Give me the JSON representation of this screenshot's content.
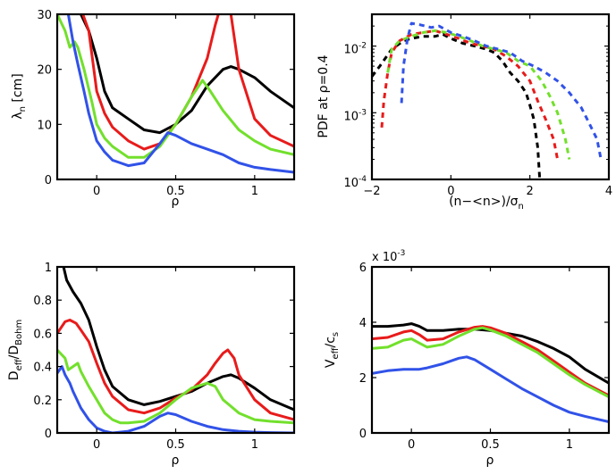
{
  "colors": {
    "blue": "#3152e8",
    "green": "#72e02c",
    "red": "#e81b1b",
    "black": "#000000"
  },
  "chart_data": [
    {
      "id": "p1",
      "type": "line",
      "xlabel": "ρ",
      "ylabel_main": "λ",
      "ylabel_sub": "n",
      "ylabel_unit": " [cm]",
      "xlim": [
        -0.25,
        1.25
      ],
      "ylim": [
        0,
        30
      ],
      "xticks": [
        0,
        0.5,
        1
      ],
      "xticklabels": [
        "0",
        "0.5",
        "1"
      ],
      "yticks": [
        0,
        10,
        20,
        30
      ],
      "yticklabels": [
        "0",
        "10",
        "20",
        "30"
      ],
      "series": [
        {
          "name": "black",
          "color": "black",
          "x": [
            -0.2,
            -0.15,
            -0.1,
            -0.05,
            0.0,
            0.05,
            0.1,
            0.2,
            0.3,
            0.4,
            0.5,
            0.6,
            0.7,
            0.8,
            0.85,
            0.9,
            1.0,
            1.1,
            1.25
          ],
          "y": [
            36,
            33,
            30,
            27,
            22,
            16,
            13,
            11,
            9,
            8.5,
            10,
            12.5,
            17,
            20,
            20.5,
            20,
            18.5,
            16,
            13
          ]
        },
        {
          "name": "red",
          "color": "red",
          "x": [
            -0.2,
            -0.15,
            -0.1,
            -0.05,
            0.0,
            0.05,
            0.1,
            0.2,
            0.3,
            0.4,
            0.5,
            0.6,
            0.7,
            0.75,
            0.8,
            0.85,
            0.9,
            1.0,
            1.1,
            1.25
          ],
          "y": [
            34,
            33,
            31,
            27,
            16,
            12,
            9.5,
            7,
            5.5,
            6.5,
            10,
            15,
            22,
            28,
            33,
            30,
            20,
            11,
            8,
            6
          ]
        },
        {
          "name": "green",
          "color": "green",
          "x": [
            -0.25,
            -0.2,
            -0.17,
            -0.14,
            -0.12,
            -0.08,
            -0.03,
            0.0,
            0.05,
            0.1,
            0.2,
            0.3,
            0.4,
            0.5,
            0.6,
            0.67,
            0.72,
            0.8,
            0.9,
            1.0,
            1.1,
            1.25
          ],
          "y": [
            30,
            27,
            24,
            25,
            24,
            20,
            14,
            10,
            7.5,
            6,
            4,
            4,
            6,
            10,
            15,
            18,
            16,
            12.5,
            9,
            7,
            5.5,
            4.5
          ]
        },
        {
          "name": "blue",
          "color": "blue",
          "x": [
            -0.18,
            -0.15,
            -0.12,
            -0.08,
            -0.05,
            0.0,
            0.05,
            0.1,
            0.15,
            0.2,
            0.3,
            0.4,
            0.45,
            0.5,
            0.6,
            0.7,
            0.8,
            0.9,
            1.0,
            1.1,
            1.25
          ],
          "y": [
            30,
            25,
            21,
            16,
            12,
            7,
            5,
            3.5,
            3,
            2.5,
            3,
            6.5,
            8.5,
            8,
            6.5,
            5.5,
            4.5,
            3,
            2.2,
            1.8,
            1.3
          ]
        }
      ]
    },
    {
      "id": "p2",
      "type": "line",
      "yscale": "log",
      "xlabel_main": "(n−<n>)/σ",
      "xlabel_sub": "n",
      "ylabel": "PDF at ρ=0.4",
      "xlim": [
        -2,
        4
      ],
      "ylim": [
        0.0001,
        0.03
      ],
      "xticks": [
        -2,
        0,
        2,
        4
      ],
      "xticklabels": [
        "−2",
        "0",
        "2",
        "4"
      ],
      "yticks": [
        0.0001,
        0.001,
        0.01
      ],
      "ytick_exponents": [
        "-4",
        "-3",
        "-2"
      ],
      "ytick_base": "10",
      "series": [
        {
          "name": "black",
          "color": "black",
          "x": [
            -2.0,
            -1.8,
            -1.5,
            -1.2,
            -1.0,
            -0.7,
            -0.4,
            -0.2,
            0.0,
            0.3,
            0.6,
            0.9,
            1.1,
            1.3,
            1.5,
            1.7,
            1.9,
            2.0,
            2.1,
            2.2,
            2.25
          ],
          "y": [
            0.0035,
            0.005,
            0.009,
            0.012,
            0.013,
            0.014,
            0.014,
            0.015,
            0.013,
            0.011,
            0.01,
            0.009,
            0.008,
            0.006,
            0.004,
            0.003,
            0.002,
            0.0013,
            0.0008,
            0.0003,
            0.0001
          ]
        },
        {
          "name": "red",
          "color": "red",
          "x": [
            -1.75,
            -1.7,
            -1.6,
            -1.5,
            -1.3,
            -1.0,
            -0.7,
            -0.4,
            -0.1,
            0.2,
            0.5,
            0.8,
            1.1,
            1.4,
            1.7,
            2.0,
            2.2,
            2.4,
            2.6,
            2.7
          ],
          "y": [
            0.0006,
            0.0015,
            0.004,
            0.008,
            0.012,
            0.015,
            0.016,
            0.017,
            0.015,
            0.013,
            0.011,
            0.01,
            0.009,
            0.007,
            0.005,
            0.003,
            0.0015,
            0.0008,
            0.0004,
            0.0002
          ]
        },
        {
          "name": "green",
          "color": "green",
          "x": [
            -1.6,
            -1.5,
            -1.3,
            -1.0,
            -0.7,
            -0.4,
            -0.1,
            0.2,
            0.5,
            0.8,
            1.1,
            1.4,
            1.7,
            2.0,
            2.3,
            2.5,
            2.7,
            2.9,
            3.0
          ],
          "y": [
            0.004,
            0.009,
            0.012,
            0.014,
            0.016,
            0.017,
            0.016,
            0.014,
            0.012,
            0.01,
            0.009,
            0.008,
            0.006,
            0.005,
            0.003,
            0.0018,
            0.001,
            0.0004,
            0.0002
          ]
        },
        {
          "name": "blue",
          "color": "blue",
          "x": [
            -1.25,
            -1.2,
            -1.1,
            -1.0,
            -0.8,
            -0.5,
            -0.3,
            0.0,
            0.3,
            0.6,
            0.9,
            1.2,
            1.5,
            1.8,
            2.1,
            2.4,
            2.7,
            3.0,
            3.3,
            3.5,
            3.7,
            3.8
          ],
          "y": [
            0.0014,
            0.005,
            0.013,
            0.022,
            0.021,
            0.019,
            0.02,
            0.016,
            0.014,
            0.012,
            0.01,
            0.009,
            0.008,
            0.006,
            0.005,
            0.004,
            0.003,
            0.002,
            0.0012,
            0.0007,
            0.0004,
            0.0002
          ]
        }
      ]
    },
    {
      "id": "p3",
      "type": "line",
      "xlabel": "ρ",
      "ylabel_main": "D",
      "ylabel_sub1": "eff",
      "ylabel_mid": "/D",
      "ylabel_sub2": "Bohm",
      "xlim": [
        -0.25,
        1.25
      ],
      "ylim": [
        0,
        1
      ],
      "xticks": [
        0,
        0.5,
        1
      ],
      "xticklabels": [
        "0",
        "0.5",
        "1"
      ],
      "yticks": [
        0,
        0.2,
        0.4,
        0.6,
        0.8,
        1
      ],
      "yticklabels": [
        "0",
        "0.2",
        "0.4",
        "0.6",
        "0.8",
        "1"
      ],
      "series": [
        {
          "name": "black",
          "color": "black",
          "x": [
            -0.21,
            -0.19,
            -0.15,
            -0.1,
            -0.05,
            0.0,
            0.05,
            0.1,
            0.2,
            0.3,
            0.4,
            0.5,
            0.6,
            0.7,
            0.8,
            0.85,
            0.9,
            1.0,
            1.1,
            1.25
          ],
          "y": [
            1.0,
            0.92,
            0.85,
            0.78,
            0.68,
            0.52,
            0.38,
            0.28,
            0.2,
            0.17,
            0.19,
            0.22,
            0.25,
            0.3,
            0.34,
            0.35,
            0.33,
            0.27,
            0.2,
            0.14
          ]
        },
        {
          "name": "red",
          "color": "red",
          "x": [
            -0.25,
            -0.2,
            -0.17,
            -0.13,
            -0.1,
            -0.05,
            0.0,
            0.05,
            0.1,
            0.2,
            0.3,
            0.4,
            0.5,
            0.6,
            0.7,
            0.75,
            0.8,
            0.83,
            0.87,
            0.9,
            1.0,
            1.1,
            1.25
          ],
          "y": [
            0.6,
            0.67,
            0.68,
            0.66,
            0.62,
            0.55,
            0.42,
            0.3,
            0.22,
            0.14,
            0.12,
            0.15,
            0.21,
            0.26,
            0.35,
            0.42,
            0.48,
            0.5,
            0.45,
            0.35,
            0.2,
            0.12,
            0.08
          ]
        },
        {
          "name": "green",
          "color": "green",
          "x": [
            -0.25,
            -0.2,
            -0.18,
            -0.15,
            -0.12,
            -0.1,
            -0.05,
            0.0,
            0.05,
            0.1,
            0.15,
            0.2,
            0.3,
            0.4,
            0.5,
            0.6,
            0.7,
            0.75,
            0.8,
            0.9,
            1.0,
            1.1,
            1.25
          ],
          "y": [
            0.5,
            0.45,
            0.38,
            0.4,
            0.42,
            0.37,
            0.28,
            0.2,
            0.12,
            0.08,
            0.06,
            0.06,
            0.07,
            0.12,
            0.2,
            0.27,
            0.3,
            0.28,
            0.2,
            0.12,
            0.08,
            0.07,
            0.06
          ]
        },
        {
          "name": "blue",
          "color": "blue",
          "x": [
            -0.25,
            -0.22,
            -0.2,
            -0.17,
            -0.15,
            -0.1,
            -0.05,
            0.0,
            0.05,
            0.1,
            0.2,
            0.3,
            0.4,
            0.45,
            0.5,
            0.6,
            0.7,
            0.8,
            0.9,
            1.0,
            1.1,
            1.25
          ],
          "y": [
            0.36,
            0.4,
            0.35,
            0.3,
            0.25,
            0.15,
            0.08,
            0.03,
            0.01,
            0.0,
            0.01,
            0.04,
            0.1,
            0.12,
            0.11,
            0.07,
            0.04,
            0.02,
            0.01,
            0.005,
            0.002,
            0.0
          ]
        }
      ]
    },
    {
      "id": "p4",
      "type": "line",
      "xlabel": "ρ",
      "ylabel_main": "V",
      "ylabel_sub1": "eff",
      "ylabel_mid": "/c",
      "ylabel_sub2": "s",
      "multiplier_base": "x 10",
      "multiplier_exp": "-3",
      "xlim": [
        -0.25,
        1.25
      ],
      "ylim": [
        0,
        6
      ],
      "xticks": [
        0,
        0.5,
        1
      ],
      "xticklabels": [
        "0",
        "0.5",
        "1"
      ],
      "yticks": [
        0,
        2,
        4,
        6
      ],
      "yticklabels": [
        "0",
        "2",
        "4",
        "6"
      ],
      "series": [
        {
          "name": "black",
          "color": "black",
          "x": [
            -0.25,
            -0.15,
            -0.05,
            0.0,
            0.05,
            0.1,
            0.2,
            0.3,
            0.4,
            0.5,
            0.6,
            0.7,
            0.8,
            0.9,
            1.0,
            1.1,
            1.25
          ],
          "y": [
            3.85,
            3.85,
            3.9,
            3.95,
            3.85,
            3.7,
            3.7,
            3.75,
            3.75,
            3.7,
            3.6,
            3.5,
            3.3,
            3.05,
            2.75,
            2.3,
            1.8
          ]
        },
        {
          "name": "red",
          "color": "red",
          "x": [
            -0.25,
            -0.15,
            -0.05,
            0.0,
            0.05,
            0.1,
            0.2,
            0.3,
            0.4,
            0.45,
            0.5,
            0.6,
            0.7,
            0.8,
            0.9,
            1.0,
            1.1,
            1.25
          ],
          "y": [
            3.4,
            3.45,
            3.65,
            3.7,
            3.55,
            3.35,
            3.4,
            3.65,
            3.82,
            3.85,
            3.8,
            3.6,
            3.3,
            3.0,
            2.6,
            2.2,
            1.8,
            1.35
          ]
        },
        {
          "name": "green",
          "color": "green",
          "x": [
            -0.25,
            -0.15,
            -0.05,
            0.0,
            0.05,
            0.1,
            0.2,
            0.3,
            0.4,
            0.45,
            0.5,
            0.6,
            0.7,
            0.8,
            0.9,
            1.0,
            1.1,
            1.25
          ],
          "y": [
            3.05,
            3.1,
            3.35,
            3.4,
            3.25,
            3.1,
            3.2,
            3.5,
            3.75,
            3.8,
            3.72,
            3.5,
            3.2,
            2.9,
            2.5,
            2.1,
            1.75,
            1.3
          ]
        },
        {
          "name": "blue",
          "color": "blue",
          "x": [
            -0.25,
            -0.15,
            -0.05,
            0.0,
            0.05,
            0.1,
            0.2,
            0.3,
            0.35,
            0.4,
            0.5,
            0.6,
            0.7,
            0.8,
            0.9,
            1.0,
            1.1,
            1.25
          ],
          "y": [
            2.15,
            2.25,
            2.3,
            2.3,
            2.3,
            2.35,
            2.5,
            2.7,
            2.75,
            2.65,
            2.3,
            1.95,
            1.6,
            1.3,
            1.0,
            0.75,
            0.6,
            0.4
          ]
        }
      ]
    }
  ]
}
